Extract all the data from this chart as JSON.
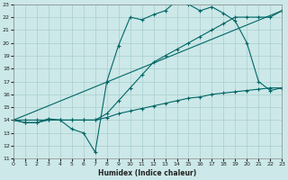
{
  "title": "",
  "xlabel": "Humidex (Indice chaleur)",
  "ylabel": "",
  "bg_color": "#cce8e8",
  "grid_color": "#aacece",
  "line_color": "#006666",
  "ylim": [
    11,
    23
  ],
  "xlim": [
    0,
    23
  ],
  "yticks": [
    11,
    12,
    13,
    14,
    15,
    16,
    17,
    18,
    19,
    20,
    21,
    22,
    23
  ],
  "xticks": [
    0,
    1,
    2,
    3,
    4,
    5,
    6,
    7,
    8,
    9,
    10,
    11,
    12,
    13,
    14,
    15,
    16,
    17,
    18,
    19,
    20,
    21,
    22,
    23
  ],
  "series": [
    {
      "x": [
        0,
        1,
        2,
        3,
        4,
        5,
        6,
        7,
        8,
        9,
        10,
        11,
        12,
        13,
        14,
        15,
        16,
        17,
        18,
        19,
        20,
        21,
        22,
        23
      ],
      "y": [
        14,
        13.8,
        13.8,
        14.0,
        14.0,
        14.0,
        14.0,
        14.0,
        14.2,
        14.5,
        14.7,
        14.9,
        15.1,
        15.3,
        15.5,
        15.7,
        15.8,
        16.0,
        16.1,
        16.2,
        16.3,
        16.4,
        16.5,
        16.5
      ]
    },
    {
      "x": [
        0,
        23
      ],
      "y": [
        14,
        22.5
      ]
    },
    {
      "x": [
        0,
        1,
        2,
        3,
        4,
        5,
        6,
        7,
        8,
        9,
        10,
        11,
        12,
        13,
        14,
        15,
        16,
        17,
        18,
        19,
        20,
        21,
        22,
        23
      ],
      "y": [
        14,
        14,
        14,
        14,
        14,
        14,
        14,
        14,
        14.5,
        15.5,
        16.5,
        17.5,
        18.5,
        19.0,
        19.5,
        20.0,
        20.5,
        21.0,
        21.5,
        22.0,
        22.0,
        22.0,
        22.0,
        22.5
      ]
    },
    {
      "x": [
        0,
        1,
        2,
        3,
        4,
        5,
        6,
        7,
        8,
        9,
        10,
        11,
        12,
        13,
        14,
        15,
        16,
        17,
        18,
        19,
        20,
        21,
        22,
        23
      ],
      "y": [
        14,
        13.8,
        13.8,
        14.1,
        14.0,
        13.3,
        13.0,
        11.5,
        17.0,
        19.8,
        22.0,
        21.8,
        22.2,
        22.5,
        23.3,
        23.0,
        22.5,
        22.8,
        22.3,
        21.7,
        20.0,
        17.0,
        16.3,
        16.5
      ]
    }
  ]
}
